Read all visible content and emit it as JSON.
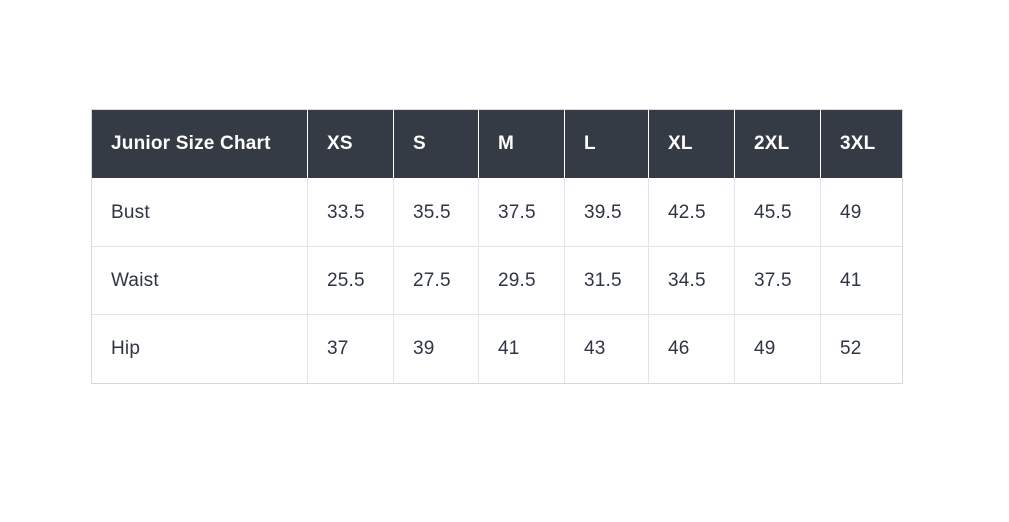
{
  "chart_data": {
    "type": "table",
    "title": "Junior Size Chart",
    "columns": [
      "Junior Size Chart",
      "XS",
      "S",
      "M",
      "L",
      "XL",
      "2XL",
      "3XL"
    ],
    "rows": [
      [
        "Bust",
        "33.5",
        "35.5",
        "37.5",
        "39.5",
        "42.5",
        "45.5",
        "49"
      ],
      [
        "Waist",
        "25.5",
        "27.5",
        "29.5",
        "31.5",
        "34.5",
        "37.5",
        "41"
      ],
      [
        "Hip",
        "37",
        "39",
        "41",
        "43",
        "46",
        "49",
        "52"
      ]
    ],
    "row_labels": [
      "Bust",
      "Waist",
      "Hip"
    ],
    "layout": {
      "header_position": "top",
      "label_column_position": "left",
      "value_alignment": "left",
      "grid": true
    }
  },
  "colors": {
    "header_background": "#353b44",
    "header_text": "#ffffff",
    "body_text": "#2e3543",
    "cell_border": "#e1e4e8",
    "outer_border": "#d5d9dd",
    "page_background": "#ffffff"
  }
}
